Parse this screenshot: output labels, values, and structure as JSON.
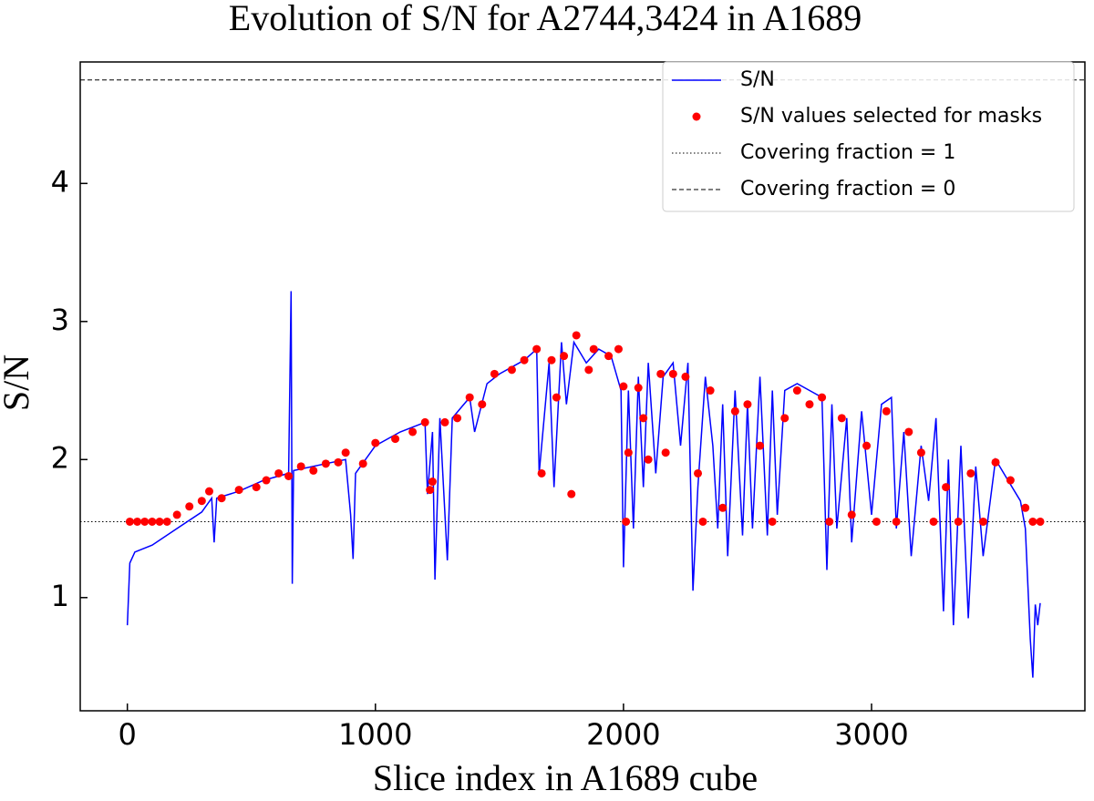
{
  "chart_data": {
    "type": "line",
    "title": "Evolution of S/N for A2744,3424 in A1689",
    "x_label": "Slice index in A1689 cube",
    "y_label": "S/N",
    "xlim": [
      -190,
      3860
    ],
    "ylim": [
      0.18,
      4.88
    ],
    "xticks": [
      0,
      1000,
      2000,
      3000
    ],
    "yticks": [
      1,
      2,
      3,
      4
    ],
    "legend": "upper right",
    "series": [
      {
        "name": "S/N",
        "color": "#0000ff",
        "style": "line",
        "x": [
          0,
          10,
          30,
          100,
          200,
          300,
          340,
          350,
          360,
          450,
          550,
          650,
          660,
          665,
          670,
          800,
          880,
          900,
          910,
          920,
          1000,
          1100,
          1200,
          1210,
          1230,
          1240,
          1260,
          1290,
          1310,
          1380,
          1400,
          1450,
          1500,
          1600,
          1650,
          1660,
          1700,
          1720,
          1750,
          1770,
          1800,
          1850,
          1900,
          1950,
          1990,
          2000,
          2020,
          2040,
          2060,
          2080,
          2100,
          2130,
          2160,
          2200,
          2230,
          2260,
          2280,
          2300,
          2330,
          2360,
          2380,
          2400,
          2420,
          2450,
          2480,
          2500,
          2520,
          2550,
          2580,
          2600,
          2620,
          2650,
          2700,
          2750,
          2800,
          2820,
          2840,
          2860,
          2900,
          2920,
          2960,
          3000,
          3040,
          3080,
          3100,
          3130,
          3160,
          3200,
          3230,
          3260,
          3290,
          3310,
          3330,
          3360,
          3390,
          3420,
          3450,
          3500,
          3550,
          3600,
          3620,
          3640,
          3650,
          3660,
          3670,
          3680
        ],
        "values": [
          0.8,
          1.25,
          1.33,
          1.38,
          1.5,
          1.62,
          1.72,
          1.4,
          1.72,
          1.77,
          1.85,
          1.9,
          3.22,
          1.1,
          1.92,
          1.97,
          2.0,
          1.6,
          1.28,
          1.9,
          2.1,
          2.2,
          2.27,
          1.75,
          2.2,
          1.13,
          2.3,
          1.27,
          2.3,
          2.45,
          2.2,
          2.55,
          2.62,
          2.72,
          2.8,
          1.9,
          2.7,
          1.8,
          2.85,
          2.4,
          2.85,
          2.7,
          2.8,
          2.75,
          2.5,
          1.22,
          2.5,
          1.5,
          2.6,
          1.8,
          2.7,
          1.9,
          2.6,
          2.7,
          2.1,
          2.7,
          1.05,
          1.8,
          2.6,
          2.1,
          1.5,
          2.4,
          1.3,
          2.5,
          1.45,
          2.4,
          1.5,
          2.6,
          1.45,
          2.5,
          1.6,
          2.5,
          2.55,
          2.5,
          2.45,
          1.2,
          2.4,
          1.5,
          2.3,
          1.4,
          2.35,
          1.6,
          2.4,
          2.45,
          1.5,
          2.2,
          1.3,
          2.1,
          1.7,
          2.3,
          0.9,
          2.0,
          0.8,
          2.1,
          0.85,
          1.95,
          1.3,
          2.0,
          1.85,
          1.7,
          1.5,
          0.7,
          0.42,
          0.95,
          0.8,
          0.96
        ]
      },
      {
        "name": "S/N values selected for masks",
        "color": "#ff0000",
        "style": "markers",
        "x": [
          10,
          40,
          70,
          100,
          130,
          160,
          200,
          250,
          300,
          330,
          380,
          450,
          520,
          560,
          610,
          650,
          700,
          750,
          800,
          850,
          880,
          950,
          1000,
          1080,
          1150,
          1200,
          1220,
          1230,
          1280,
          1330,
          1380,
          1430,
          1480,
          1550,
          1600,
          1650,
          1670,
          1710,
          1730,
          1760,
          1790,
          1810,
          1860,
          1880,
          1940,
          1980,
          2000,
          2010,
          2020,
          2060,
          2080,
          2100,
          2150,
          2170,
          2200,
          2250,
          2300,
          2320,
          2350,
          2400,
          2450,
          2500,
          2550,
          2600,
          2650,
          2700,
          2750,
          2800,
          2830,
          2880,
          2920,
          2980,
          3020,
          3060,
          3100,
          3150,
          3200,
          3250,
          3300,
          3350,
          3400,
          3450,
          3500,
          3560,
          3620,
          3650,
          3680
        ],
        "values": [
          1.55,
          1.55,
          1.55,
          1.55,
          1.55,
          1.55,
          1.6,
          1.66,
          1.7,
          1.77,
          1.72,
          1.78,
          1.8,
          1.85,
          1.9,
          1.88,
          1.95,
          1.92,
          1.97,
          1.98,
          2.05,
          1.97,
          2.12,
          2.15,
          2.2,
          2.27,
          1.78,
          1.84,
          2.27,
          2.3,
          2.45,
          2.4,
          2.62,
          2.65,
          2.72,
          2.8,
          1.9,
          2.72,
          2.45,
          2.75,
          1.75,
          2.9,
          2.65,
          2.8,
          2.75,
          2.8,
          2.53,
          1.55,
          2.05,
          2.52,
          2.3,
          2.0,
          2.62,
          2.05,
          2.62,
          2.6,
          1.9,
          1.55,
          2.5,
          1.65,
          2.35,
          2.4,
          2.1,
          1.55,
          2.3,
          2.5,
          2.4,
          2.45,
          1.55,
          2.3,
          1.6,
          2.1,
          1.55,
          2.35,
          1.55,
          2.2,
          2.05,
          1.55,
          1.8,
          1.55,
          1.9,
          1.55,
          1.98,
          1.85,
          1.65,
          1.55,
          1.55
        ]
      }
    ],
    "hlines": [
      {
        "name": "Covering fraction = 1",
        "value": 1.55,
        "color": "#000000",
        "style": "dotted"
      },
      {
        "name": "Covering fraction = 0",
        "value": 4.75,
        "color": "#000000",
        "style": "dashed"
      }
    ]
  }
}
